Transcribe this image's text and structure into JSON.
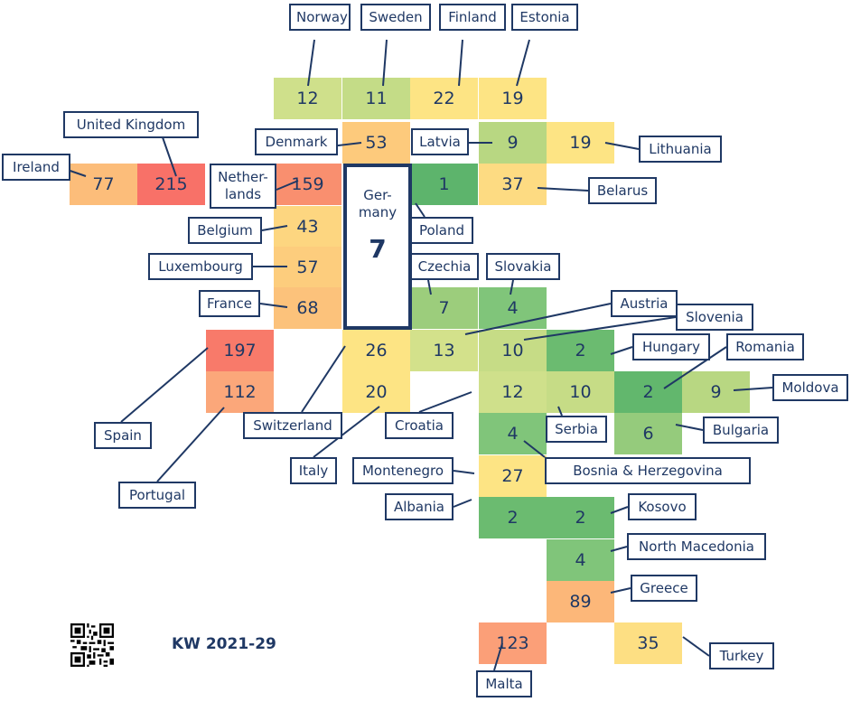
{
  "period": "KW 2021-29",
  "qr_icon": "qr-code-icon",
  "colors": {
    "dark_green": "#5db46c",
    "green": "#80c57a",
    "light_green": "#a3cf7e",
    "yellow_green": "#cfe08b",
    "yellow": "#fde484",
    "light_orange": "#fdca7c",
    "orange": "#fba57a",
    "red": "#f87168",
    "text": "#1f3864"
  },
  "germany": {
    "name": "Ger-many",
    "value": "7"
  },
  "countries": [
    {
      "name": "Norway",
      "value": "12",
      "color": "#cfe08b"
    },
    {
      "name": "Sweden",
      "value": "11",
      "color": "#c4dc87"
    },
    {
      "name": "Finland",
      "value": "22",
      "color": "#fde484"
    },
    {
      "name": "Estonia",
      "value": "19",
      "color": "#fde484"
    },
    {
      "name": "Denmark",
      "value": "53",
      "color": "#fdca7c"
    },
    {
      "name": "Latvia",
      "value": "9",
      "color": "#b8d782"
    },
    {
      "name": "Lithuania",
      "value": "19",
      "color": "#fde484"
    },
    {
      "name": "Ireland",
      "value": "77",
      "color": "#fcbd7a"
    },
    {
      "name": "United Kingdom",
      "value": "215",
      "color": "#f87168"
    },
    {
      "name": "Nether-lands",
      "value": "159",
      "color": "#f98f6f"
    },
    {
      "name": "Poland",
      "value": "1",
      "color": "#5db46c"
    },
    {
      "name": "Belarus",
      "value": "37",
      "color": "#fddb82"
    },
    {
      "name": "Belgium",
      "value": "43",
      "color": "#fdd680"
    },
    {
      "name": "Luxembourg",
      "value": "57",
      "color": "#fdcd7d"
    },
    {
      "name": "France",
      "value": "68",
      "color": "#fcc27b"
    },
    {
      "name": "Czechia",
      "value": "7",
      "color": "#9ccd7c"
    },
    {
      "name": "Slovakia",
      "value": "4",
      "color": "#80c57a"
    },
    {
      "name": "Spain",
      "value": "197",
      "color": "#f87a6a"
    },
    {
      "name": "Switzerland",
      "value": "26",
      "color": "#fde484"
    },
    {
      "name": "Austria",
      "value": "13",
      "color": "#d3e18b"
    },
    {
      "name": "Slovenia",
      "value": "10",
      "color": "#c6dc86"
    },
    {
      "name": "Hungary",
      "value": "2",
      "color": "#6bbb70"
    },
    {
      "name": "Portugal",
      "value": "112",
      "color": "#fba77a"
    },
    {
      "name": "Italy",
      "value": "20",
      "color": "#fde484"
    },
    {
      "name": "Croatia",
      "value": "12",
      "color": "#cfe08b"
    },
    {
      "name": "Serbia",
      "value": "10",
      "color": "#c6dc86"
    },
    {
      "name": "Romania",
      "value": "2",
      "color": "#62b76d"
    },
    {
      "name": "Moldova",
      "value": "9",
      "color": "#b8d782"
    },
    {
      "name": "Bosnia & Herzegovina",
      "value": "4",
      "color": "#80c57a"
    },
    {
      "name": "Bulgaria",
      "value": "6",
      "color": "#95cb7c"
    },
    {
      "name": "Montenegro",
      "value": "27",
      "color": "#fde484"
    },
    {
      "name": "Albania",
      "value": "2",
      "color": "#6bbb70"
    },
    {
      "name": "Kosovo",
      "value": "2",
      "color": "#6bbb70"
    },
    {
      "name": "North Macedonia",
      "value": "4",
      "color": "#80c57a"
    },
    {
      "name": "Greece",
      "value": "89",
      "color": "#fcb779"
    },
    {
      "name": "Malta",
      "value": "123",
      "color": "#fb9f78"
    },
    {
      "name": "Turkey",
      "value": "35",
      "color": "#fddf83"
    }
  ]
}
